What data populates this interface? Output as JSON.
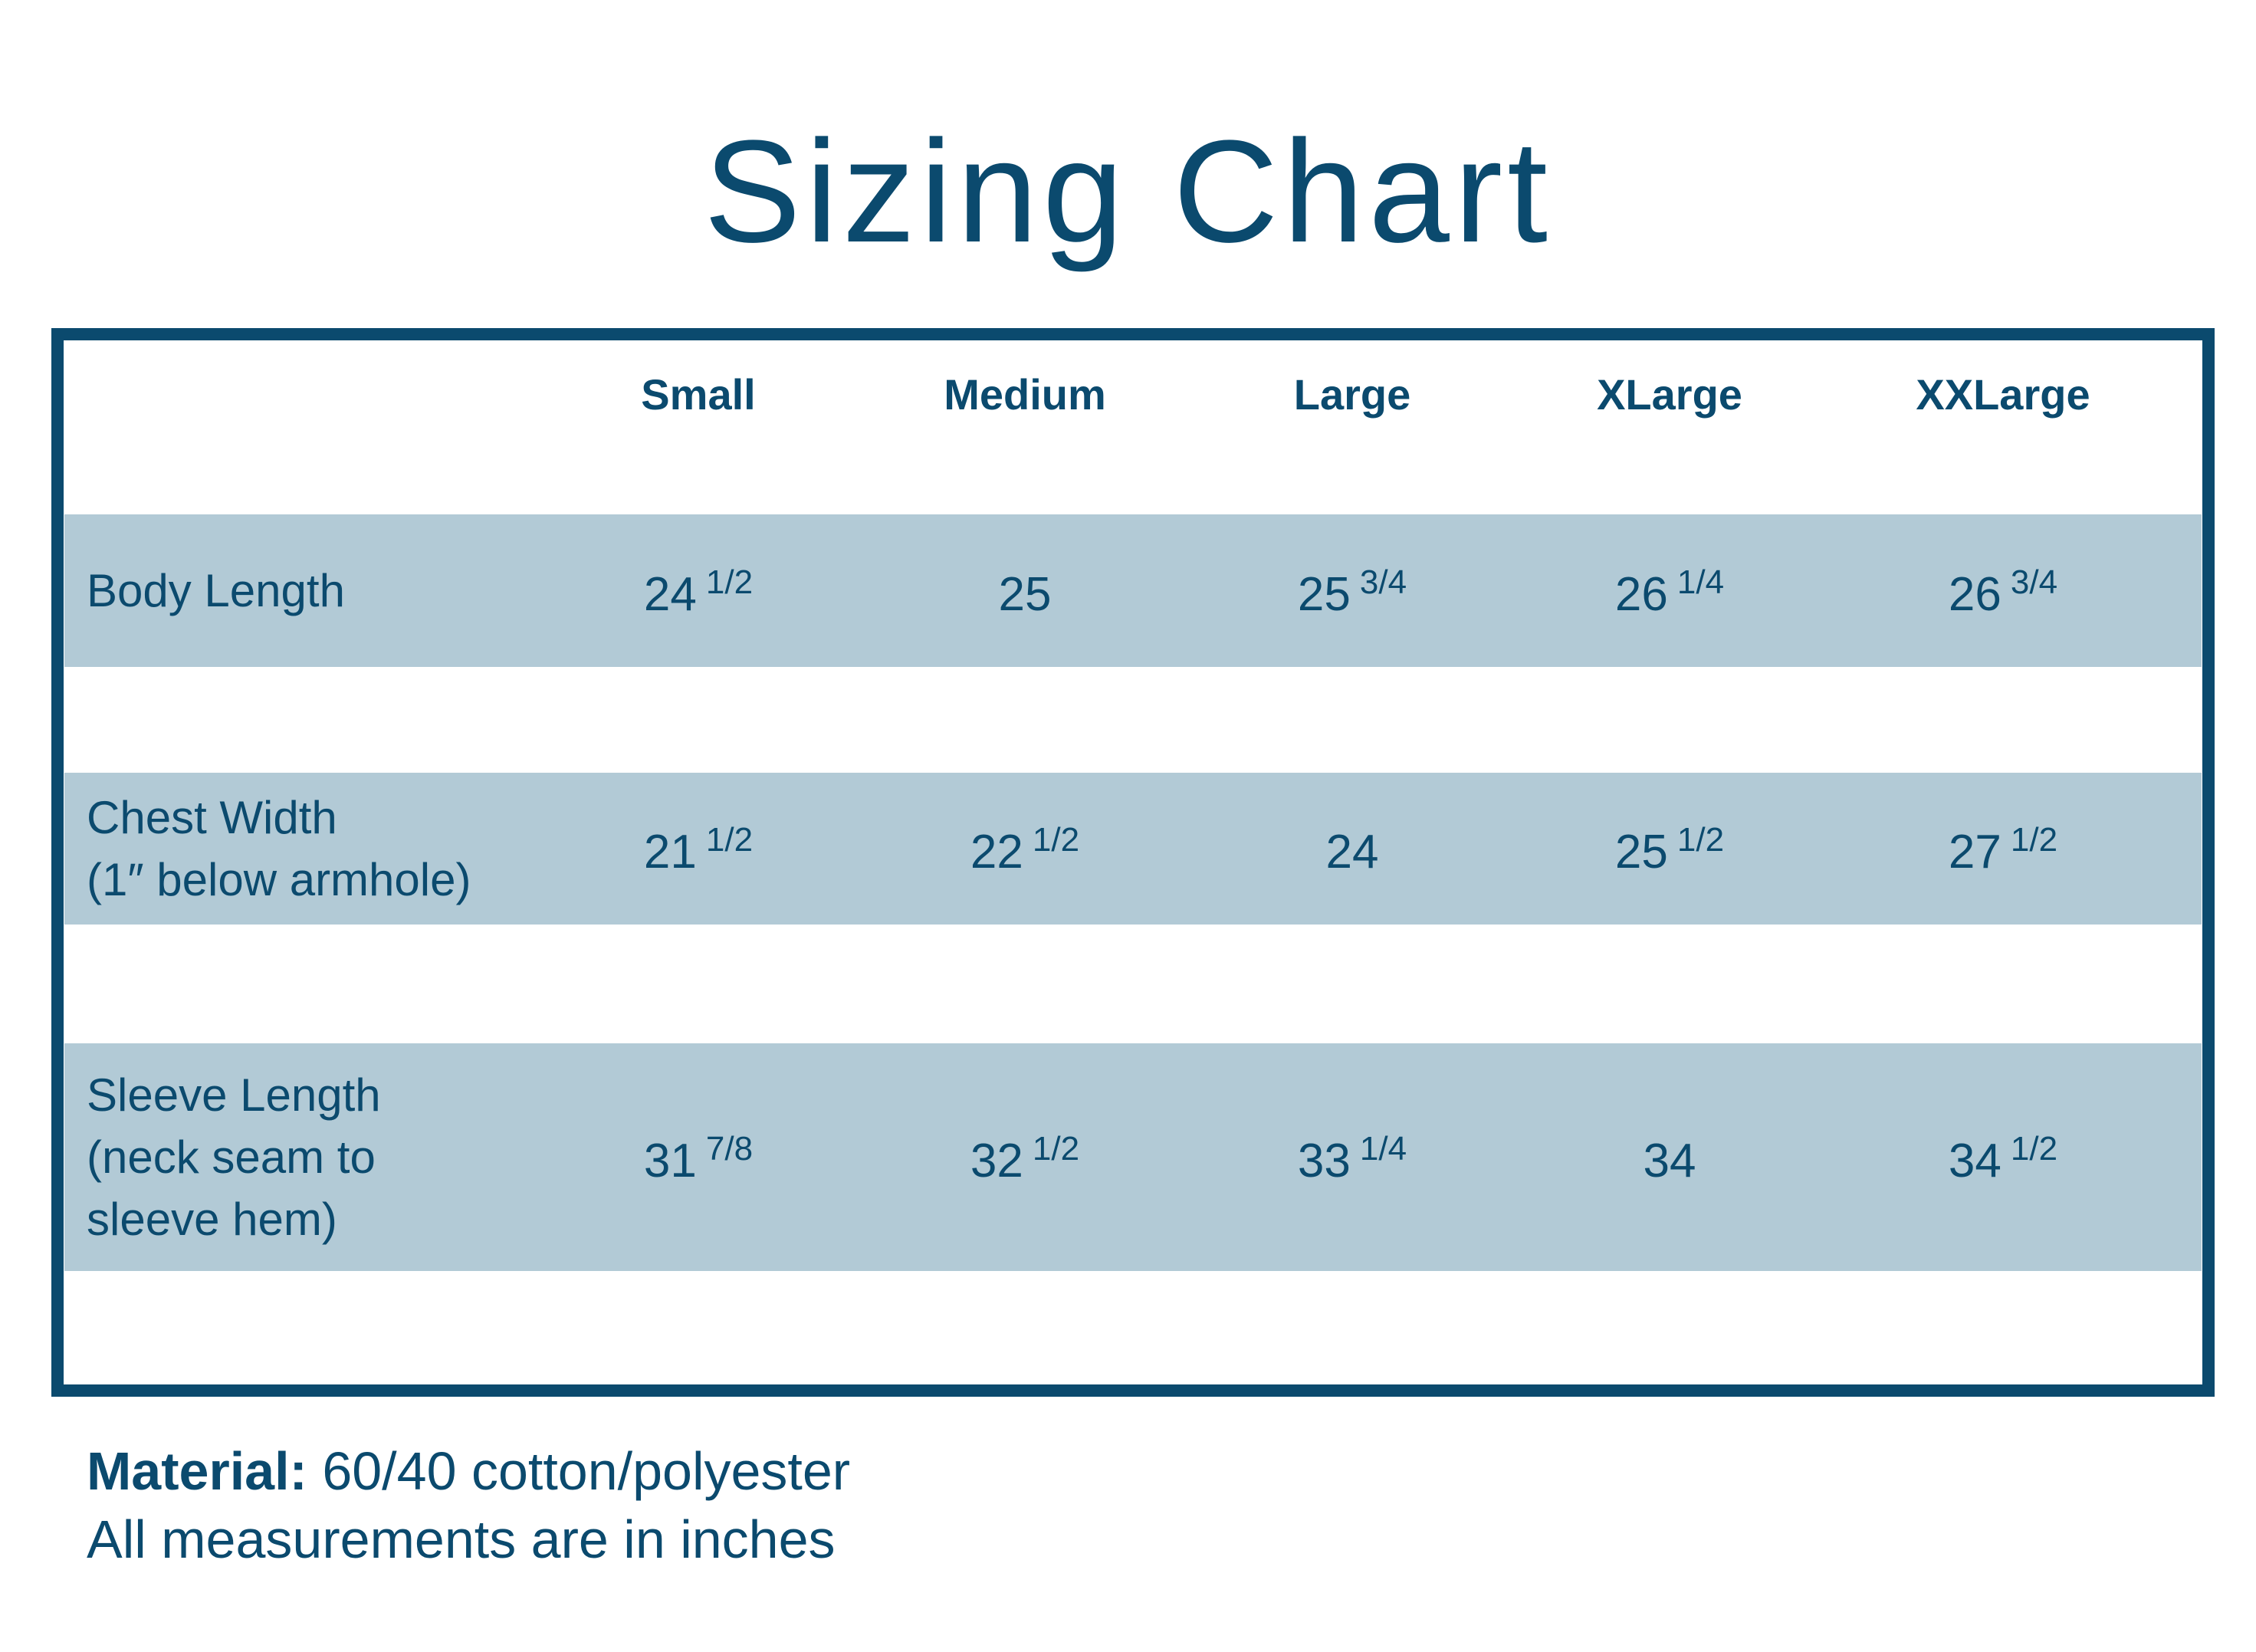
{
  "title": "Sizing Chart",
  "colors": {
    "primary": "#0b4a6e",
    "band": "#b2cad6",
    "background": "#ffffff"
  },
  "columns": [
    "Small",
    "Medium",
    "Large",
    "XLarge",
    "XXLarge"
  ],
  "rows": [
    {
      "label_lines": [
        "Body Length"
      ],
      "values": [
        {
          "whole": "24",
          "frac": "1/2"
        },
        {
          "whole": "25",
          "frac": ""
        },
        {
          "whole": "25",
          "frac": "3/4"
        },
        {
          "whole": "26",
          "frac": "1/4"
        },
        {
          "whole": "26",
          "frac": "3/4"
        }
      ]
    },
    {
      "label_lines": [
        "Chest Width",
        "(1″ below armhole)"
      ],
      "values": [
        {
          "whole": "21",
          "frac": "1/2"
        },
        {
          "whole": "22",
          "frac": "1/2"
        },
        {
          "whole": "24",
          "frac": ""
        },
        {
          "whole": "25",
          "frac": "1/2"
        },
        {
          "whole": "27",
          "frac": "1/2"
        }
      ]
    },
    {
      "label_lines": [
        "Sleeve Length",
        "(neck seam to",
        "sleeve hem)"
      ],
      "values": [
        {
          "whole": "31",
          "frac": "7/8"
        },
        {
          "whole": "32",
          "frac": "1/2"
        },
        {
          "whole": "33",
          "frac": "1/4"
        },
        {
          "whole": "34",
          "frac": ""
        },
        {
          "whole": "34",
          "frac": "1/2"
        }
      ]
    }
  ],
  "footer": {
    "material_label": "Material:",
    "material_value": " 60/40 cotton/polyester",
    "note": "All measurements are in inches"
  }
}
